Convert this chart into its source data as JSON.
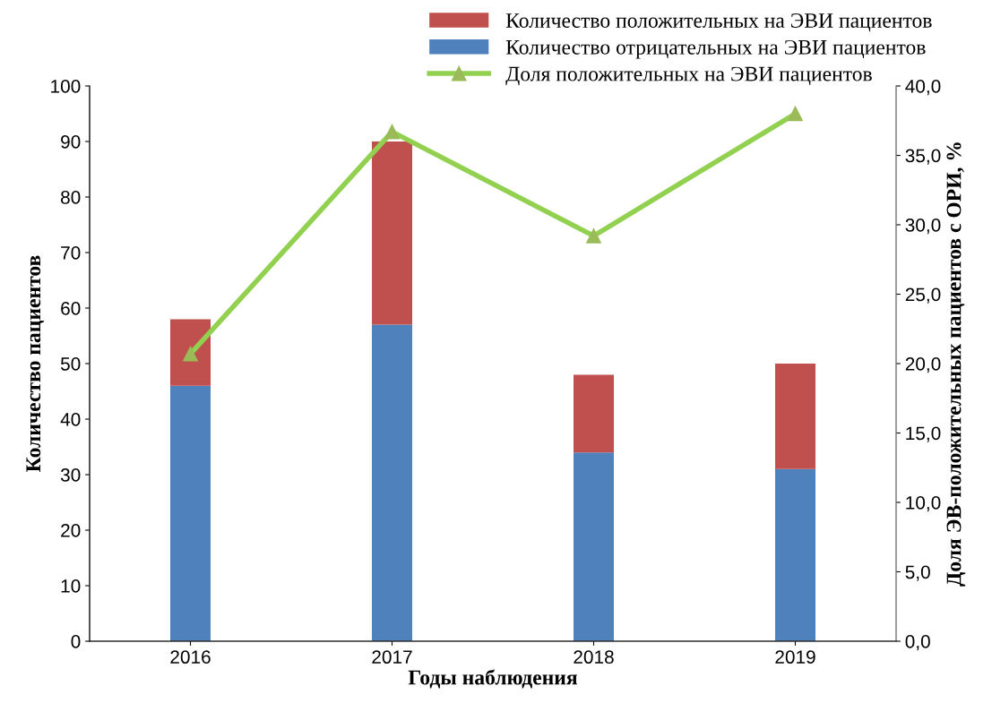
{
  "chart_data": {
    "type": "bar",
    "stacked": true,
    "xlabel": "Годы наблюдения",
    "ylabel": "Количество пациентов",
    "y2label": "Доля ЭВ-положительных пациентов с ОРИ, %",
    "categories": [
      "2016",
      "2017",
      "2018",
      "2019"
    ],
    "series": [
      {
        "name": "Количество отрицательных на ЭВИ пациентов",
        "color": "#4f81bd",
        "values": [
          46,
          57,
          34,
          31
        ]
      },
      {
        "name": "Количество положительных на ЭВИ пациентов",
        "color": "#c0504d",
        "values": [
          12,
          33,
          14,
          19
        ]
      },
      {
        "name": "Доля положительных на ЭВИ пациентов",
        "type": "line",
        "axis": "y2",
        "color": "#92d050",
        "marker": "triangle",
        "values": [
          20.7,
          36.7,
          29.2,
          38.0
        ]
      }
    ],
    "ylim": [
      0,
      100
    ],
    "yticks": [
      0,
      10,
      20,
      30,
      40,
      50,
      60,
      70,
      80,
      90,
      100
    ],
    "y2lim": [
      0,
      40
    ],
    "y2ticks": [
      {
        "value": 0,
        "label": "0,0"
      },
      {
        "value": 5,
        "label": "5,0"
      },
      {
        "value": 10,
        "label": "10,0"
      },
      {
        "value": 15,
        "label": "15,0"
      },
      {
        "value": 20,
        "label": "20,0"
      },
      {
        "value": 25,
        "label": "25,0"
      },
      {
        "value": 30,
        "label": "30,0"
      },
      {
        "value": 35,
        "label": "35,0"
      },
      {
        "value": 40,
        "label": "40,0"
      }
    ],
    "grid": false,
    "legend": "top"
  }
}
